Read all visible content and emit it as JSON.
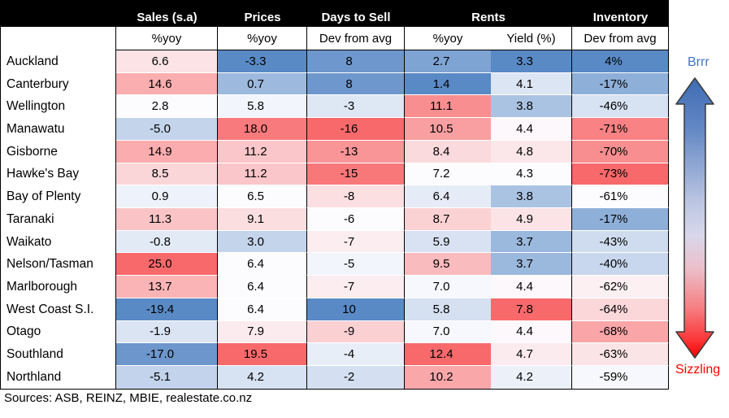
{
  "chart_data": {
    "type": "heatmap",
    "columns": [
      {
        "group": "Sales (s.a)",
        "label": "%yoy",
        "hot_end": "max"
      },
      {
        "group": "Prices",
        "label": "%yoy",
        "hot_end": "max"
      },
      {
        "group": "Days to Sell",
        "label": "Dev from avg",
        "hot_end": "min"
      },
      {
        "group": "Rents",
        "label": "%yoy",
        "hot_end": "max"
      },
      {
        "group": "Rents",
        "label": "Yield (%)",
        "hot_end": "max"
      },
      {
        "group": "Inventory",
        "label": "Dev from avg",
        "hot_end": "min"
      }
    ],
    "rows": [
      {
        "region": "Auckland",
        "values": [
          "6.6",
          "-3.3",
          "8",
          "2.7",
          "3.3",
          "4%"
        ]
      },
      {
        "region": "Canterbury",
        "values": [
          "14.6",
          "0.7",
          "8",
          "1.4",
          "4.1",
          "-17%"
        ]
      },
      {
        "region": "Wellington",
        "values": [
          "2.8",
          "5.8",
          "-3",
          "11.1",
          "3.8",
          "-46%"
        ]
      },
      {
        "region": "Manawatu",
        "values": [
          "-5.0",
          "18.0",
          "-16",
          "10.5",
          "4.4",
          "-71%"
        ]
      },
      {
        "region": "Gisborne",
        "values": [
          "14.9",
          "11.2",
          "-13",
          "8.4",
          "4.8",
          "-70%"
        ]
      },
      {
        "region": "Hawke's Bay",
        "values": [
          "8.5",
          "11.2",
          "-15",
          "7.2",
          "4.3",
          "-73%"
        ]
      },
      {
        "region": "Bay of Plenty",
        "values": [
          "0.9",
          "6.5",
          "-8",
          "6.4",
          "3.8",
          "-61%"
        ]
      },
      {
        "region": "Taranaki",
        "values": [
          "11.3",
          "9.1",
          "-6",
          "8.7",
          "4.9",
          "-17%"
        ]
      },
      {
        "region": "Waikato",
        "values": [
          "-0.8",
          "3.0",
          "-7",
          "5.9",
          "3.7",
          "-43%"
        ]
      },
      {
        "region": "Nelson/Tasman",
        "values": [
          "25.0",
          "6.4",
          "-5",
          "9.5",
          "3.7",
          "-40%"
        ]
      },
      {
        "region": "Marlborough",
        "values": [
          "13.7",
          "6.4",
          "-7",
          "7.0",
          "4.4",
          "-62%"
        ]
      },
      {
        "region": "West Coast S.I.",
        "values": [
          "-19.4",
          "6.4",
          "10",
          "5.8",
          "7.8",
          "-64%"
        ]
      },
      {
        "region": "Otago",
        "values": [
          "-1.9",
          "7.9",
          "-9",
          "7.0",
          "4.4",
          "-68%"
        ]
      },
      {
        "region": "Southland",
        "values": [
          "-17.0",
          "19.5",
          "-4",
          "12.4",
          "4.7",
          "-63%"
        ]
      },
      {
        "region": "Northland",
        "values": [
          "-5.1",
          "4.2",
          "-2",
          "10.2",
          "4.2",
          "-59%"
        ]
      }
    ],
    "colormap": {
      "cold": "#5A8AC6",
      "mid": "#FCFCFF",
      "hot": "#F8696B",
      "midpoint": "median"
    },
    "legend_position": "right"
  },
  "legend": {
    "top_label": "Brrr",
    "bottom_label": "Sizzling",
    "top_color": "#4475C6",
    "bottom_color": "#FF0000"
  },
  "source": "Sources: ASB, REINZ, MBIE, realestate.co.nz",
  "header_bg": "#000000",
  "header_text_color": "#FFFFFF"
}
